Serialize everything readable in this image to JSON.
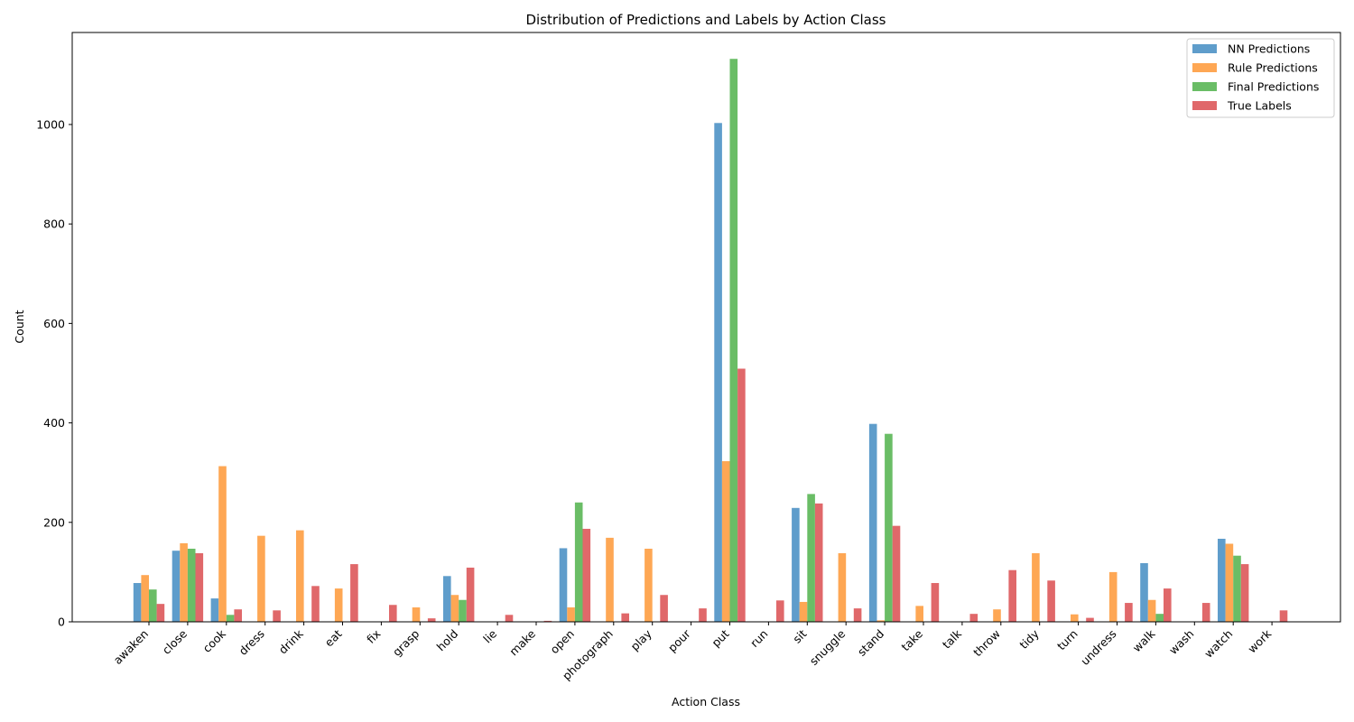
{
  "chart_data": {
    "type": "bar",
    "title": "Distribution of Predictions and Labels by Action Class",
    "xlabel": "Action Class",
    "ylabel": "Count",
    "ylim": [
      0,
      1185
    ],
    "yticks": [
      0,
      200,
      400,
      600,
      800,
      1000
    ],
    "grid": false,
    "legend_position": "top-right",
    "categories": [
      "awaken",
      "close",
      "cook",
      "dress",
      "drink",
      "eat",
      "fix",
      "grasp",
      "hold",
      "lie",
      "make",
      "open",
      "photograph",
      "play",
      "pour",
      "put",
      "run",
      "sit",
      "snuggle",
      "stand",
      "take",
      "talk",
      "throw",
      "tidy",
      "turn",
      "undress",
      "walk",
      "wash",
      "watch",
      "work"
    ],
    "series": [
      {
        "name": "NN Predictions",
        "color": "#5f9dcb",
        "values": [
          78,
          143,
          47,
          0,
          0,
          0,
          0,
          0,
          92,
          0,
          0,
          148,
          0,
          0,
          0,
          1003,
          0,
          229,
          0,
          398,
          0,
          0,
          0,
          0,
          0,
          0,
          118,
          0,
          167,
          0
        ]
      },
      {
        "name": "Rule Predictions",
        "color": "#fea754",
        "values": [
          94,
          158,
          313,
          173,
          184,
          67,
          0,
          29,
          54,
          0,
          0,
          29,
          169,
          147,
          0,
          323,
          0,
          40,
          138,
          3,
          32,
          0,
          25,
          138,
          15,
          100,
          44,
          0,
          157,
          0
        ]
      },
      {
        "name": "Final Predictions",
        "color": "#6abd66",
        "values": [
          65,
          147,
          14,
          0,
          0,
          0,
          0,
          0,
          44,
          0,
          0,
          240,
          0,
          0,
          0,
          1132,
          0,
          257,
          0,
          378,
          0,
          0,
          0,
          0,
          0,
          0,
          16,
          0,
          133,
          0
        ]
      },
      {
        "name": "True Labels",
        "color": "#e0686a",
        "values": [
          36,
          138,
          25,
          23,
          72,
          116,
          34,
          7,
          109,
          14,
          2,
          187,
          17,
          54,
          27,
          509,
          43,
          238,
          27,
          193,
          78,
          16,
          104,
          83,
          8,
          38,
          67,
          38,
          116,
          23
        ]
      }
    ]
  }
}
